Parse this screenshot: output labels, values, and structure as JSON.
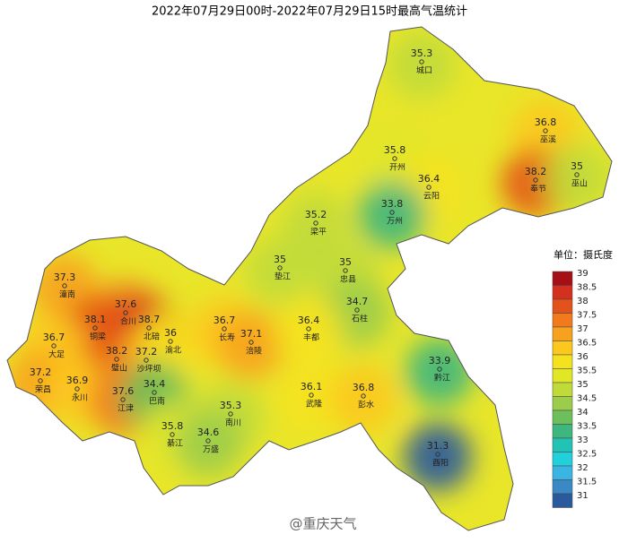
{
  "header": {
    "title": "2022年07月29日00时-2022年07月29日15时最高气温统计"
  },
  "stations": [
    {
      "value": 35.3,
      "name": "城口"
    },
    {
      "value": 36.8,
      "name": "巫溪"
    },
    {
      "value": 38.2,
      "name": "奉节"
    },
    {
      "value": 35,
      "name": "巫山"
    },
    {
      "value": 35.8,
      "name": "开州"
    },
    {
      "value": 36.4,
      "name": "云阳"
    },
    {
      "value": 33.8,
      "name": "万州"
    },
    {
      "value": 35.2,
      "name": "梁平"
    },
    {
      "value": 35,
      "name": "垫江"
    },
    {
      "value": 35,
      "name": "忠县"
    },
    {
      "value": 34.7,
      "name": "石柱"
    },
    {
      "value": 37.3,
      "name": "潼南"
    },
    {
      "value": 37.6,
      "name": "合川"
    },
    {
      "value": 38.1,
      "name": "铜梁"
    },
    {
      "value": 38.7,
      "name": "北碚"
    },
    {
      "value": 36.7,
      "name": "大足"
    },
    {
      "value": 38.2,
      "name": "璧山"
    },
    {
      "value": 37.2,
      "name": "沙坪坝"
    },
    {
      "value": 36,
      "name": "渝北"
    },
    {
      "value": 36.7,
      "name": "长寿"
    },
    {
      "value": 37.1,
      "name": "涪陵"
    },
    {
      "value": 36.4,
      "name": "丰都"
    },
    {
      "value": 37.2,
      "name": "荣昌"
    },
    {
      "value": 36.9,
      "name": "永川"
    },
    {
      "value": 37.6,
      "name": "江津"
    },
    {
      "value": 34.4,
      "name": "巴南"
    },
    {
      "value": 35.3,
      "name": "南川"
    },
    {
      "value": 36.1,
      "name": "武隆"
    },
    {
      "value": 36.8,
      "name": "彭水"
    },
    {
      "value": 33.9,
      "name": "黔江"
    },
    {
      "value": 35.8,
      "name": "綦江"
    },
    {
      "value": 34.6,
      "name": "万盛"
    },
    {
      "value": 31.3,
      "name": "酉阳"
    }
  ],
  "legend": {
    "unit": "单位：摄氏度",
    "levels": [
      {
        "value": 39,
        "color": "#a50f15"
      },
      {
        "value": 38.5,
        "color": "#d3301f"
      },
      {
        "value": 38,
        "color": "#e3521a"
      },
      {
        "value": 37.5,
        "color": "#f07a1c"
      },
      {
        "value": 37,
        "color": "#f7a21e"
      },
      {
        "value": 36.5,
        "color": "#fcc820"
      },
      {
        "value": 36,
        "color": "#f5e21e"
      },
      {
        "value": 35.5,
        "color": "#e1e627"
      },
      {
        "value": 35,
        "color": "#c0da3a"
      },
      {
        "value": 34.5,
        "color": "#9bcc4a"
      },
      {
        "value": 34,
        "color": "#6cbf5a"
      },
      {
        "value": 33.5,
        "color": "#3fb67e"
      },
      {
        "value": 33,
        "color": "#22c2b4"
      },
      {
        "value": 32.5,
        "color": "#22d0dc"
      },
      {
        "value": 32,
        "color": "#3ab5e2"
      },
      {
        "value": 31.5,
        "color": "#3a88c4"
      },
      {
        "value": 31,
        "color": "#2a5a9c"
      }
    ]
  },
  "watermark": "@重庆天气"
}
